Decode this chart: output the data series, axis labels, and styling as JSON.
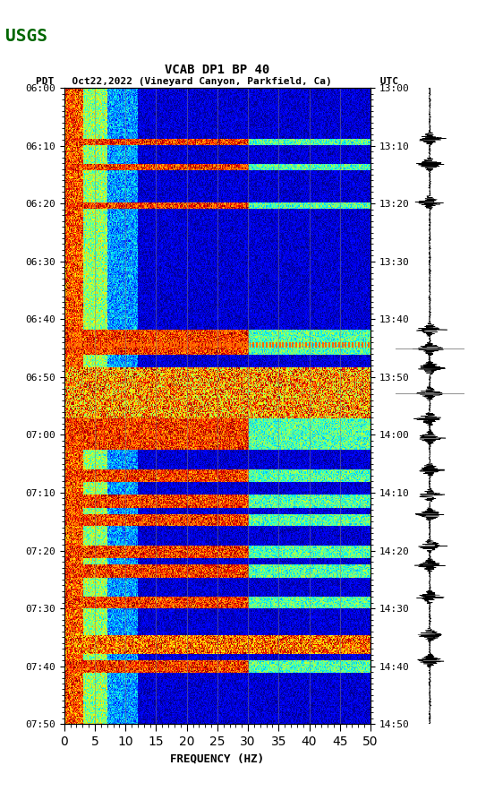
{
  "title_line1": "VCAB DP1 BP 40",
  "title_line2": "PDT   Oct22,2022 (Vineyard Canyon, Parkfield, Ca)        UTC",
  "xlabel": "FREQUENCY (HZ)",
  "freq_min": 0,
  "freq_max": 50,
  "freq_ticks": [
    0,
    5,
    10,
    15,
    20,
    25,
    30,
    35,
    40,
    45,
    50
  ],
  "left_time_labels": [
    "06:00",
    "06:10",
    "06:20",
    "06:30",
    "06:40",
    "06:50",
    "07:00",
    "07:10",
    "07:20",
    "07:30",
    "07:40",
    "07:50"
  ],
  "right_time_labels": [
    "13:00",
    "13:10",
    "13:20",
    "13:30",
    "13:40",
    "13:50",
    "14:00",
    "14:10",
    "14:20",
    "14:30",
    "14:40",
    "14:50"
  ],
  "time_rows": 12,
  "vertical_lines_freq": [
    5,
    10,
    15,
    20,
    25,
    30,
    35,
    40,
    45
  ],
  "bg_color": "white",
  "spectrogram_cmap": "jet",
  "fig_width": 5.52,
  "fig_height": 8.93,
  "dpi": 100
}
